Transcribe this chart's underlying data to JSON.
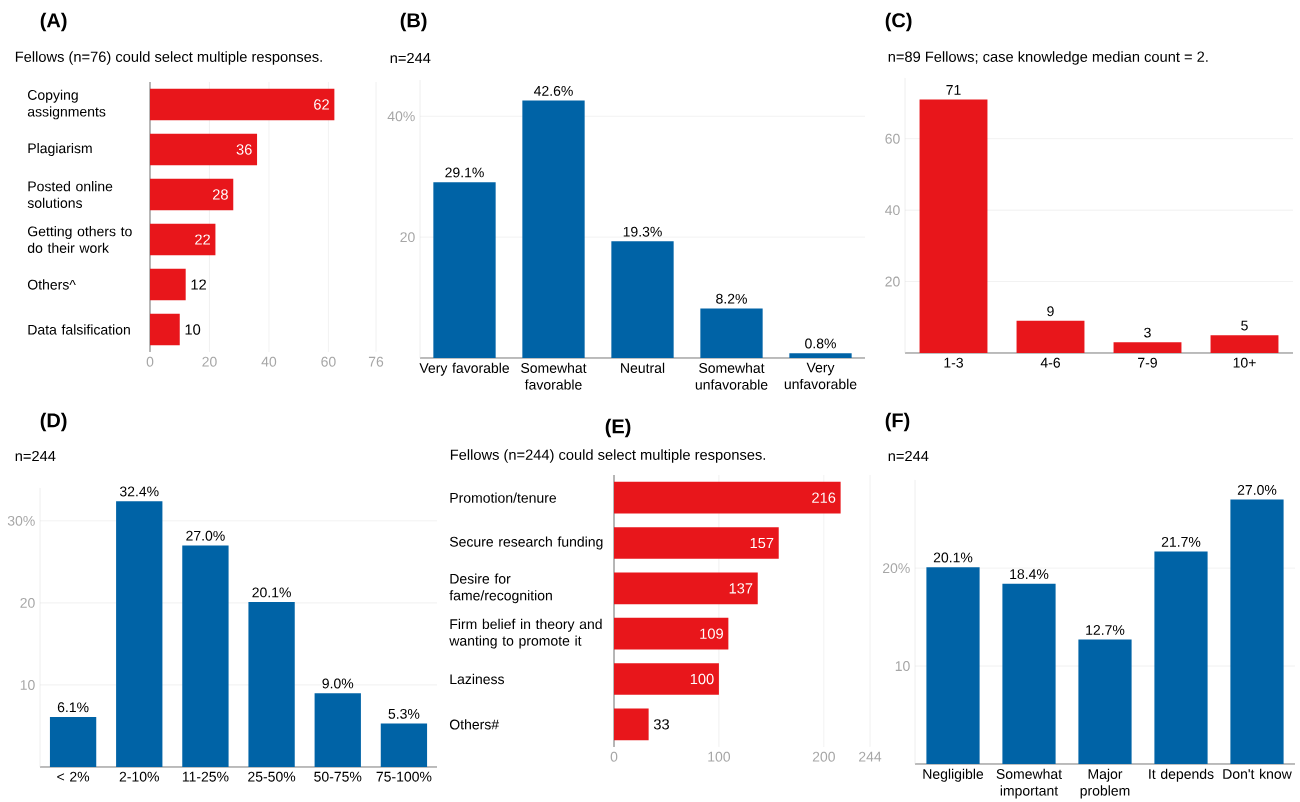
{
  "chart_data": [
    {
      "type": "bar",
      "orientation": "horizontal",
      "title": "(A)",
      "subtitle": "Fellows (n=76) could select multiple responses.",
      "categories": [
        "Copying assignments",
        "Plagiarism",
        "Posted online solutions",
        "Getting others to do their work",
        "Others^",
        "Data falsification"
      ],
      "values": [
        62,
        36,
        28,
        22,
        12,
        10
      ],
      "color": "#e8161b",
      "xlim": [
        0,
        76
      ],
      "xticks": [
        0,
        20,
        40,
        60,
        76
      ],
      "grid": "x",
      "data_labels": true
    },
    {
      "type": "bar",
      "title": "(B)",
      "subtitle": "n=244",
      "categories": [
        "Very favorable",
        "Somewhat favorable",
        "Neutral",
        "Somewhat unfavorable",
        "Very unfavorable"
      ],
      "values": [
        29.1,
        42.6,
        19.3,
        8.2,
        0.8
      ],
      "value_labels": [
        "29.1%",
        "42.6%",
        "19.3%",
        "8.2%",
        "0.8%"
      ],
      "color": "#0063a6",
      "ylim": [
        0,
        46
      ],
      "yticks": [
        20,
        {
          "value": 40,
          "label": "40%"
        }
      ],
      "grid": "y"
    },
    {
      "type": "bar",
      "title": "(C)",
      "subtitle": "n=89 Fellows; case knowledge median count = 2.",
      "categories": [
        "1-3",
        "4-6",
        "7-9",
        "10+"
      ],
      "values": [
        71,
        9,
        3,
        5
      ],
      "color": "#e8161b",
      "ylim": [
        0,
        77
      ],
      "yticks": [
        20,
        40,
        60
      ],
      "grid": "y",
      "data_labels": true
    },
    {
      "type": "bar",
      "title": "(D)",
      "subtitle": "n=244",
      "categories": [
        "< 2%",
        "2-10%",
        "11-25%",
        "25-50%",
        "50-75%",
        "75-100%"
      ],
      "values": [
        6.1,
        32.4,
        27.0,
        20.1,
        9.0,
        5.3
      ],
      "value_labels": [
        "6.1%",
        "32.4%",
        "27.0%",
        "20.1%",
        "9.0%",
        "5.3%"
      ],
      "color": "#0063a6",
      "ylim": [
        0,
        34
      ],
      "yticks": [
        10,
        20,
        {
          "value": 30,
          "label": "30%"
        }
      ],
      "grid": "y"
    },
    {
      "type": "bar",
      "orientation": "horizontal",
      "title": "(E)",
      "subtitle": "Fellows (n=244) could select multiple responses.",
      "categories": [
        "Promotion/tenure",
        "Secure research funding",
        "Desire for fame/recognition",
        "Firm belief in theory and wanting to promote it",
        "Laziness",
        "Others#"
      ],
      "values": [
        216,
        157,
        137,
        109,
        100,
        33
      ],
      "color": "#e8161b",
      "xlim": [
        0,
        244
      ],
      "xticks": [
        0,
        100,
        200,
        244
      ],
      "grid": "x",
      "data_labels": true
    },
    {
      "type": "bar",
      "title": "(F)",
      "subtitle": "n=244",
      "categories": [
        "Negligible",
        "Somewhat important",
        "Major problem",
        "It depends",
        "Don't know"
      ],
      "values": [
        20.1,
        18.4,
        12.7,
        21.7,
        27.0
      ],
      "value_labels": [
        "20.1%",
        "18.4%",
        "12.7%",
        "21.7%",
        "27.0%"
      ],
      "color": "#0063a6",
      "ylim": [
        0,
        29
      ],
      "yticks": [
        10,
        {
          "value": 20,
          "label": "20%"
        }
      ],
      "grid": "y"
    }
  ]
}
